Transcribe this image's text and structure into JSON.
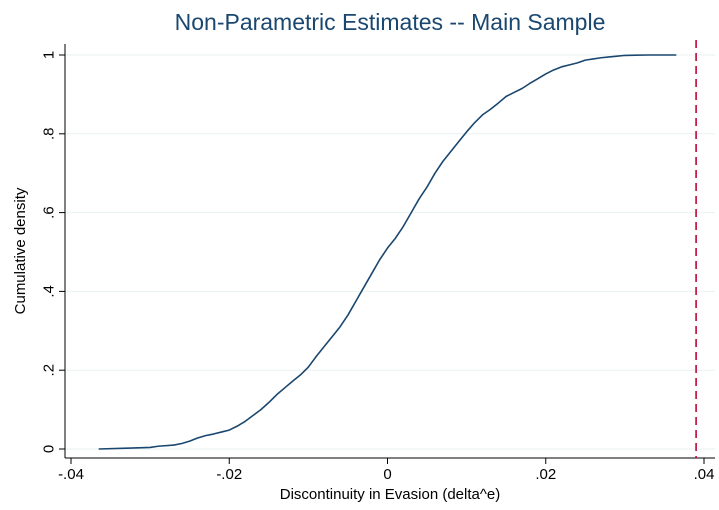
{
  "chart_data": {
    "type": "line",
    "title": "Non-Parametric Estimates -- Main Sample",
    "xlabel": "Discontinuity in Evasion (delta^e)",
    "ylabel": "Cumulative density",
    "xlim": [
      -0.04,
      0.04
    ],
    "ylim": [
      0,
      1
    ],
    "x_ticks": [
      {
        "value": -0.04,
        "label": "-.04"
      },
      {
        "value": -0.02,
        "label": "-.02"
      },
      {
        "value": 0,
        "label": "0"
      },
      {
        "value": 0.02,
        "label": ".02"
      },
      {
        "value": 0.04,
        "label": ".04"
      }
    ],
    "y_ticks": [
      {
        "value": 0,
        "label": "0"
      },
      {
        "value": 0.2,
        "label": ".2"
      },
      {
        "value": 0.4,
        "label": ".4"
      },
      {
        "value": 0.6,
        "label": ".6"
      },
      {
        "value": 0.8,
        "label": ".8"
      },
      {
        "value": 1,
        "label": "1"
      }
    ],
    "grid": true,
    "legend": "none",
    "series": [
      {
        "x": [
          -0.0365,
          -0.033,
          -0.03,
          -0.029,
          -0.027,
          -0.026,
          -0.025,
          -0.024,
          -0.023,
          -0.022,
          -0.021,
          -0.02,
          -0.019,
          -0.018,
          -0.017,
          -0.016,
          -0.015,
          -0.014,
          -0.013,
          -0.012,
          -0.011,
          -0.01,
          -0.009,
          -0.008,
          -0.007,
          -0.006,
          -0.005,
          -0.004,
          -0.003,
          -0.002,
          -0.001,
          0.0,
          0.001,
          0.002,
          0.003,
          0.004,
          0.005,
          0.006,
          0.007,
          0.008,
          0.009,
          0.01,
          0.011,
          0.012,
          0.013,
          0.014,
          0.015,
          0.016,
          0.017,
          0.018,
          0.019,
          0.02,
          0.021,
          0.022,
          0.023,
          0.024,
          0.025,
          0.026,
          0.027,
          0.028,
          0.029,
          0.03,
          0.033,
          0.0365
        ],
        "values": [
          0.0,
          0.002,
          0.004,
          0.007,
          0.01,
          0.014,
          0.02,
          0.028,
          0.034,
          0.038,
          0.043,
          0.048,
          0.058,
          0.07,
          0.085,
          0.1,
          0.118,
          0.138,
          0.155,
          0.172,
          0.188,
          0.208,
          0.235,
          0.26,
          0.285,
          0.31,
          0.34,
          0.375,
          0.41,
          0.445,
          0.48,
          0.51,
          0.535,
          0.565,
          0.6,
          0.635,
          0.665,
          0.7,
          0.73,
          0.755,
          0.78,
          0.805,
          0.828,
          0.848,
          0.862,
          0.878,
          0.895,
          0.905,
          0.915,
          0.928,
          0.94,
          0.952,
          0.962,
          0.97,
          0.975,
          0.98,
          0.987,
          0.99,
          0.993,
          0.995,
          0.997,
          0.999,
          1.0,
          1.0
        ],
        "color": "#1a476f"
      }
    ],
    "reference_line": {
      "x": 0.039,
      "color": "#c10534",
      "style": "dashed"
    },
    "colors": {
      "title": "#1a476f",
      "grid": "#eaf2f3",
      "background": "#ffffff"
    }
  }
}
